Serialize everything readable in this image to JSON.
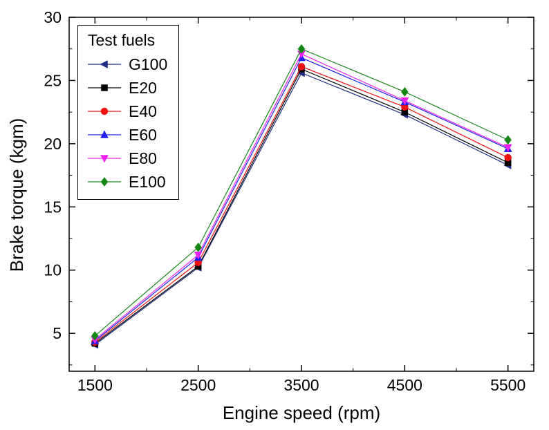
{
  "chart_data": {
    "type": "line",
    "title": "",
    "xlabel": "Engine speed (rpm)",
    "ylabel": "Brake torque (kgm)",
    "legend_title": "Test fuels",
    "x": [
      1500,
      2500,
      3500,
      4500,
      5500
    ],
    "series": [
      {
        "name": "G100",
        "marker": "triangle-left",
        "color": "#1f2d86",
        "values": [
          4.1,
          10.2,
          25.6,
          22.3,
          18.3
        ]
      },
      {
        "name": "E20",
        "marker": "square",
        "color": "#000000",
        "values": [
          4.2,
          10.3,
          25.9,
          22.5,
          18.5
        ]
      },
      {
        "name": "E40",
        "marker": "circle",
        "color": "#ee1111",
        "values": [
          4.3,
          10.6,
          26.1,
          22.9,
          18.9
        ]
      },
      {
        "name": "E60",
        "marker": "triangle-up",
        "color": "#2020ee",
        "values": [
          4.4,
          11.0,
          26.8,
          23.3,
          19.6
        ]
      },
      {
        "name": "E80",
        "marker": "triangle-down",
        "color": "#ee22ee",
        "values": [
          4.5,
          11.2,
          27.1,
          23.4,
          19.7
        ]
      },
      {
        "name": "E100",
        "marker": "diamond",
        "color": "#168616",
        "values": [
          4.8,
          11.8,
          27.5,
          24.1,
          20.3
        ]
      }
    ],
    "xlim": [
      1250,
      5750
    ],
    "ylim": [
      2,
      30
    ],
    "x_major_ticks": [
      1500,
      2500,
      3500,
      4500,
      5500
    ],
    "y_major_ticks": [
      5,
      10,
      15,
      20,
      25,
      30
    ],
    "x_minor_step": 500,
    "y_minor_step": 2.5,
    "grid": false,
    "legend_position": "top-left-inside",
    "frame_color": "#000000",
    "background_color": "#ffffff"
  }
}
